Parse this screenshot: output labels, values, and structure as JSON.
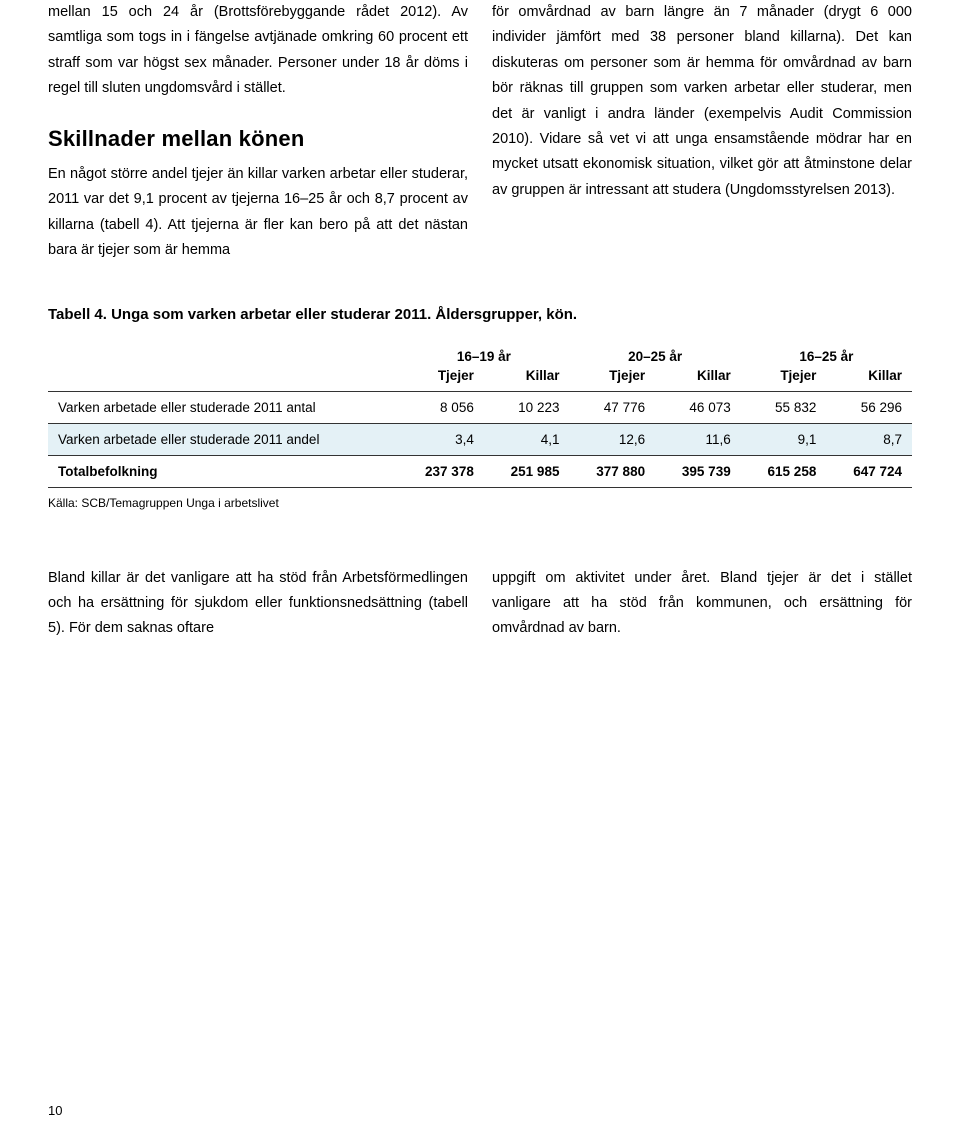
{
  "col_left": {
    "p1": "mellan 15 och 24 år (Brottsförebyggande rådet 2012). Av samtliga som togs in i fängelse avtjänade omkring 60 procent ett straff som var högst sex månader. Personer under 18 år döms i regel till sluten ungdomsvård i stället.",
    "heading": "Skillnader mellan könen",
    "p2": "En något större andel tjejer än killar varken arbetar eller studerar, 2011 var det 9,1 procent av tjejerna 16–25 år och 8,7 procent av killarna (tabell 4). Att tjejerna är fler kan bero på att det nästan bara är tjejer som är hemma"
  },
  "col_right": {
    "p1": "för omvårdnad av barn längre än 7 månader (drygt 6 000 individer jämfört med 38 personer bland killarna). Det kan diskuteras om personer som är hemma för omvårdnad av barn bör räknas till gruppen som varken arbetar eller studerar, men det är vanligt i andra länder (exempelvis Audit Commission 2010). Vidare så vet vi att unga ensamstående mödrar har en mycket utsatt ekonomisk situation, vilket gör att åtminstone delar av gruppen är intressant att studera (Ungdomsstyrelsen 2013)."
  },
  "table": {
    "title": "Tabell 4. Unga som varken arbetar eller studerar 2011. Åldersgrupper, kön.",
    "group_headers": [
      "16–19 år",
      "20–25 år",
      "16–25 år"
    ],
    "sub_headers": [
      "Tjejer",
      "Killar",
      "Tjejer",
      "Killar",
      "Tjejer",
      "Killar"
    ],
    "rows": [
      {
        "label": "Varken arbetade eller studerade 2011 antal",
        "vals": [
          "8 056",
          "10 223",
          "47 776",
          "46 073",
          "55 832",
          "56 296"
        ],
        "hl": false,
        "bold": false
      },
      {
        "label": "Varken arbetade eller studerade 2011 andel",
        "vals": [
          "3,4",
          "4,1",
          "12,6",
          "11,6",
          "9,1",
          "8,7"
        ],
        "hl": true,
        "bold": false
      },
      {
        "label": "Totalbefolkning",
        "vals": [
          "237 378",
          "251 985",
          "377 880",
          "395 739",
          "615 258",
          "647 724"
        ],
        "hl": false,
        "bold": true
      }
    ],
    "source": "Källa: SCB/Temagruppen Unga i arbetslivet"
  },
  "bottom": {
    "left": "Bland killar är det vanligare att ha stöd från Arbetsförmedlingen och ha ersättning för sjukdom eller funktionsnedsättning (tabell 5). För dem saknas oftare",
    "right": "uppgift om aktivitet under året. Bland tjejer är det i stället vanligare att ha stöd från kommunen, och ersättning för omvårdnad av barn."
  },
  "page_number": "10",
  "colors": {
    "highlight_row": "#e4f1f6",
    "text": "#000000",
    "background": "#ffffff",
    "border": "#333333"
  },
  "typography": {
    "body_fontsize": 14.5,
    "heading_fontsize": 22,
    "table_title_fontsize": 15,
    "table_fontsize": 13.5,
    "source_fontsize": 12,
    "heading_weight": 900
  }
}
